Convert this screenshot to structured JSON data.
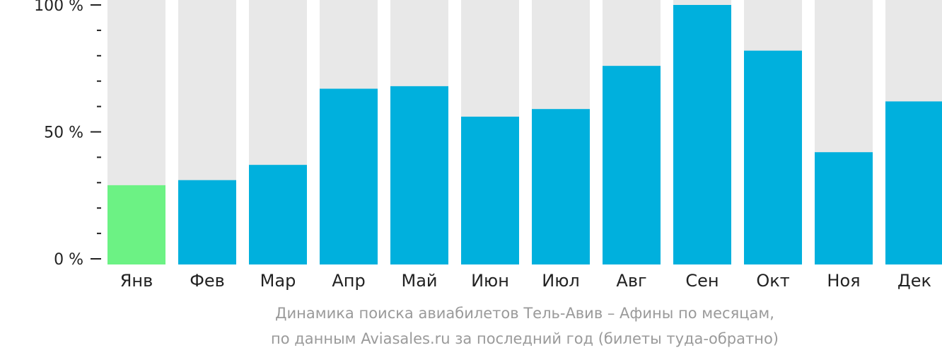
{
  "chart_data": {
    "type": "bar",
    "categories": [
      "Янв",
      "Фев",
      "Мар",
      "Апр",
      "Май",
      "Июн",
      "Июл",
      "Авг",
      "Сен",
      "Окт",
      "Ноя",
      "Дек"
    ],
    "values": [
      29,
      31,
      37,
      67,
      68,
      56,
      59,
      76,
      100,
      82,
      42,
      62
    ],
    "highlighted_category": "Янв",
    "ylim": [
      0,
      100
    ],
    "yticks": [
      {
        "value": 0,
        "label": "0 %"
      },
      {
        "value": 50,
        "label": "50 %"
      },
      {
        "value": 100,
        "label": "100 %"
      }
    ],
    "minor_ytick_step": 10,
    "grid": false,
    "colors": {
      "bar": "#00b0dd",
      "highlight": "#6cf284",
      "track": "#e8e8e8",
      "axis": "#222222"
    }
  },
  "caption": {
    "line1": "Динамика поиска авиабилетов Тель-Авив – Афины по месяцам,",
    "line2": "по данным Aviasales.ru за последний год (билеты туда-обратно)"
  }
}
